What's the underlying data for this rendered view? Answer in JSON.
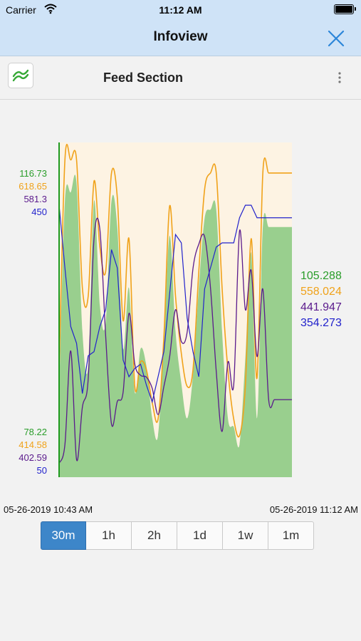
{
  "status": {
    "carrier": "Carrier",
    "time": "11:12 AM"
  },
  "nav": {
    "title": "Infoview"
  },
  "header": {
    "title": "Feed Section"
  },
  "colors": {
    "green": "#2a9d2a",
    "orange": "#f0a21a",
    "purple": "#5a1a8c",
    "blue": "#2222cc",
    "area_fill": "#99cf8e",
    "plot_bg": "#fdf3e3"
  },
  "axis": {
    "max": [
      "116.73",
      "618.65",
      "581.3",
      "450"
    ],
    "min": [
      "78.22",
      "414.58",
      "402.59",
      "50"
    ]
  },
  "current_values": [
    "105.288",
    "558.024",
    "441.947",
    "354.273"
  ],
  "dates": {
    "start": "05-26-2019 10:43 AM",
    "end": "05-26-2019 11:12 AM"
  },
  "ranges": [
    "30m",
    "1h",
    "2h",
    "1d",
    "1w",
    "1m"
  ],
  "active_range": "30m",
  "chart_data": {
    "type": "line",
    "x_start": "05-26-2019 10:43 AM",
    "x_end": "05-26-2019 11:12 AM",
    "x": [
      0,
      1,
      2,
      3,
      4,
      5,
      6,
      7,
      8,
      9,
      10,
      11,
      12,
      13,
      14,
      15,
      16,
      17,
      18,
      19,
      20,
      21,
      22,
      23,
      24,
      25,
      26,
      27,
      28,
      29,
      30,
      31,
      32,
      33,
      34,
      35,
      36,
      37,
      38,
      39,
      40
    ],
    "series": [
      {
        "color": "#2a9d2a",
        "fill": "#99cf8e",
        "ylim": [
          78.22,
          116.73
        ],
        "values": [
          88,
          110,
          111,
          112,
          95,
          91,
          110,
          98,
          96,
          110,
          107,
          93,
          100,
          88,
          93,
          91,
          85,
          83,
          94,
          106,
          95,
          89,
          85,
          90,
          100,
          108,
          109,
          109,
          95,
          85,
          84,
          82,
          92,
          104,
          85,
          107,
          107,
          107,
          107,
          107,
          107
        ]
      },
      {
        "color": "#f0a21a",
        "ylim": [
          414.58,
          618.65
        ],
        "values": [
          480,
          608,
          608,
          608,
          530,
          525,
          595,
          555,
          540,
          600,
          585,
          510,
          560,
          470,
          485,
          480,
          460,
          450,
          500,
          580,
          525,
          490,
          470,
          480,
          540,
          590,
          600,
          600,
          530,
          480,
          450,
          440,
          470,
          560,
          475,
          600,
          600,
          600,
          600,
          600,
          600
        ]
      },
      {
        "color": "#5a1a8c",
        "ylim": [
          402.59,
          581.3
        ],
        "values": [
          410,
          420,
          470,
          412,
          440,
          455,
          530,
          535,
          478,
          431,
          443,
          448,
          490,
          463,
          457,
          456,
          450,
          436,
          451,
          467,
          492,
          475,
          480,
          514,
          527,
          531,
          504,
          459,
          427,
          464,
          452,
          534,
          492,
          513,
          467,
          503,
          444,
          444,
          444,
          444,
          444
        ]
      },
      {
        "color": "#2222cc",
        "ylim": [
          50,
          450
        ],
        "values": [
          375,
          300,
          230,
          210,
          150,
          195,
          200,
          230,
          250,
          322,
          300,
          190,
          170,
          180,
          185,
          160,
          140,
          170,
          200,
          270,
          340,
          330,
          240,
          200,
          170,
          275,
          300,
          325,
          330,
          330,
          330,
          360,
          375,
          375,
          360,
          360,
          360,
          360,
          360,
          360,
          360
        ]
      }
    ]
  }
}
